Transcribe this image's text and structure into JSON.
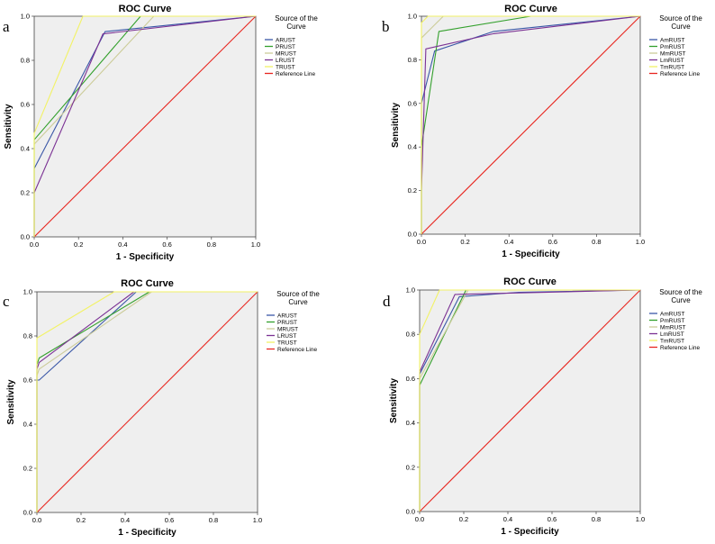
{
  "chart_data": [
    {
      "panel": "a",
      "type": "line",
      "title": "ROC Curve",
      "xlabel": "1 - Specificity",
      "ylabel": "Sensitivity",
      "xlim": [
        0,
        1
      ],
      "ylim": [
        0,
        1
      ],
      "xticks": [
        "0.0",
        "0.2",
        "0.4",
        "0.6",
        "0.8",
        "1.0"
      ],
      "yticks": [
        "0.0",
        "0.2",
        "0.4",
        "0.6",
        "0.8",
        "1.0"
      ],
      "legend_title": [
        "Source of the",
        "Curve"
      ],
      "legend_position": "right",
      "series": [
        {
          "name": "ARUST",
          "color": "#3a57a7",
          "x": [
            0,
            0,
            0.32,
            1
          ],
          "y": [
            0,
            0.31,
            0.93,
            1
          ]
        },
        {
          "name": "PRUST",
          "color": "#33a02c",
          "x": [
            0,
            0,
            0.48,
            1
          ],
          "y": [
            0,
            0.44,
            1,
            1
          ]
        },
        {
          "name": "MRUST",
          "color": "#cccc99",
          "x": [
            0,
            0,
            0.54,
            1
          ],
          "y": [
            0,
            0.42,
            1,
            1
          ]
        },
        {
          "name": "LRUST",
          "color": "#7b3294",
          "x": [
            0,
            0,
            0.31,
            1
          ],
          "y": [
            0,
            0.2,
            0.92,
            1
          ]
        },
        {
          "name": "TRUST",
          "color": "#f2f266",
          "x": [
            0,
            0,
            0.22,
            1
          ],
          "y": [
            0,
            0.47,
            1,
            1
          ]
        },
        {
          "name": "Reference Line",
          "color": "#e8261f",
          "x": [
            0,
            1
          ],
          "y": [
            0,
            1
          ]
        }
      ]
    },
    {
      "panel": "b",
      "type": "line",
      "title": "ROC Curve",
      "xlabel": "1 - Specificity",
      "ylabel": "Sensitivity",
      "xlim": [
        0,
        1
      ],
      "ylim": [
        0,
        1
      ],
      "xticks": [
        "0.0",
        "0.2",
        "0.4",
        "0.6",
        "0.8",
        "1.0"
      ],
      "yticks": [
        "0.0",
        "0.2",
        "0.4",
        "0.6",
        "0.8",
        "1.0"
      ],
      "legend_title": [
        "Source of the",
        "Curve"
      ],
      "legend_position": "right",
      "series": [
        {
          "name": "AmRUST",
          "color": "#3a57a7",
          "x": [
            0,
            0,
            0.06,
            0.33,
            1
          ],
          "y": [
            0,
            0.6,
            0.84,
            0.93,
            1
          ]
        },
        {
          "name": "PmRUST",
          "color": "#33a02c",
          "x": [
            0,
            0,
            0.08,
            0.5,
            1
          ],
          "y": [
            0,
            0.4,
            0.93,
            1,
            1
          ]
        },
        {
          "name": "MmRUST",
          "color": "#cccc99",
          "x": [
            0,
            0,
            0.05,
            0.1,
            1
          ],
          "y": [
            0,
            0.9,
            0.95,
            1,
            1
          ]
        },
        {
          "name": "LmRUST",
          "color": "#7b3294",
          "x": [
            0,
            0,
            0.02,
            0.33,
            1
          ],
          "y": [
            0,
            0.2,
            0.85,
            0.92,
            1
          ]
        },
        {
          "name": "TmRUST",
          "color": "#f2f266",
          "x": [
            0,
            0,
            0.03,
            1
          ],
          "y": [
            0,
            0.97,
            1,
            1
          ]
        },
        {
          "name": "Reference Line",
          "color": "#e8261f",
          "x": [
            0,
            1
          ],
          "y": [
            0,
            1
          ]
        }
      ]
    },
    {
      "panel": "c",
      "type": "line",
      "title": "ROC Curve",
      "xlabel": "1 - Specificity",
      "ylabel": "Sensitivity",
      "xlim": [
        0,
        1
      ],
      "ylim": [
        0,
        1
      ],
      "xticks": [
        "0.0",
        "0.2",
        "0.4",
        "0.6",
        "0.8",
        "1.0"
      ],
      "yticks": [
        "0.0",
        "0.2",
        "0.4",
        "0.6",
        "0.8",
        "1.0"
      ],
      "legend_title": [
        "Source of the",
        "Curve"
      ],
      "legend_position": "right",
      "series": [
        {
          "name": "ARUST",
          "color": "#3a57a7",
          "x": [
            0,
            0,
            0.01,
            0.45,
            1
          ],
          "y": [
            0,
            0.6,
            0.6,
            1,
            1
          ]
        },
        {
          "name": "PRUST",
          "color": "#33a02c",
          "x": [
            0,
            0,
            0.01,
            0.51,
            1
          ],
          "y": [
            0,
            0.67,
            0.7,
            1,
            1
          ]
        },
        {
          "name": "MRUST",
          "color": "#cccc99",
          "x": [
            0,
            0,
            0.01,
            0.52,
            1
          ],
          "y": [
            0,
            0.62,
            0.65,
            1,
            1
          ]
        },
        {
          "name": "LRUST",
          "color": "#7b3294",
          "x": [
            0,
            0,
            0.01,
            0.44,
            1
          ],
          "y": [
            0,
            0.65,
            0.68,
            1,
            1
          ]
        },
        {
          "name": "TRUST",
          "color": "#f2f266",
          "x": [
            0,
            0,
            0.35,
            1
          ],
          "y": [
            0,
            0.79,
            1,
            1
          ]
        },
        {
          "name": "Reference Line",
          "color": "#e8261f",
          "x": [
            0,
            1
          ],
          "y": [
            0,
            1
          ]
        }
      ]
    },
    {
      "panel": "d",
      "type": "line",
      "title": "ROC Curve",
      "xlabel": "1 - Specificity",
      "ylabel": "Sensitivity",
      "xlim": [
        0,
        1
      ],
      "ylim": [
        0,
        1
      ],
      "xticks": [
        "0.0",
        "0.2",
        "0.4",
        "0.6",
        "0.8",
        "1.0"
      ],
      "yticks": [
        "0.0",
        "0.2",
        "0.4",
        "0.6",
        "0.8",
        "1.0"
      ],
      "legend_title": [
        "Source of the",
        "Curve"
      ],
      "legend_position": "right",
      "series": [
        {
          "name": "AmRUST",
          "color": "#3a57a7",
          "x": [
            0,
            0,
            0.18,
            0.45,
            1
          ],
          "y": [
            0,
            0.62,
            0.97,
            0.99,
            1
          ]
        },
        {
          "name": "PmRUST",
          "color": "#33a02c",
          "x": [
            0,
            0,
            0.21,
            1
          ],
          "y": [
            0,
            0.57,
            1,
            1
          ]
        },
        {
          "name": "MmRUST",
          "color": "#cccc99",
          "x": [
            0,
            0,
            0.22,
            1
          ],
          "y": [
            0,
            0.6,
            1,
            1
          ]
        },
        {
          "name": "LmRUST",
          "color": "#7b3294",
          "x": [
            0,
            0,
            0.16,
            1
          ],
          "y": [
            0,
            0.63,
            0.98,
            1
          ]
        },
        {
          "name": "TmRUST",
          "color": "#f2f266",
          "x": [
            0,
            0,
            0.09,
            1
          ],
          "y": [
            0,
            0.8,
            1,
            1
          ]
        },
        {
          "name": "Reference Line",
          "color": "#e8261f",
          "x": [
            0,
            1
          ],
          "y": [
            0,
            1
          ]
        }
      ]
    }
  ]
}
